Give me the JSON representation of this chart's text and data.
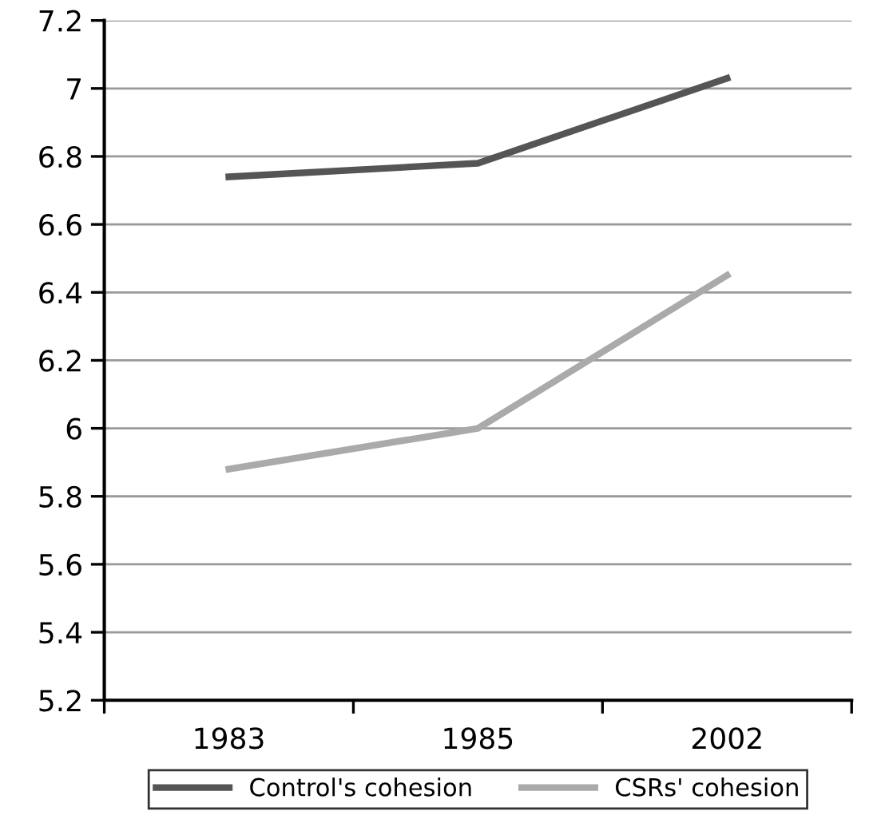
{
  "chart_data": {
    "type": "line",
    "categories": [
      "1983",
      "1985",
      "2002"
    ],
    "series": [
      {
        "name": "Control's cohesion",
        "color": "#555555",
        "values": [
          6.74,
          6.78,
          7.03
        ]
      },
      {
        "name": "CSRs' cohesion",
        "color": "#aaaaaa",
        "values": [
          5.88,
          6.0,
          6.45
        ]
      }
    ],
    "ylim": [
      5.2,
      7.2
    ],
    "yticks": [
      5.2,
      5.4,
      5.6,
      5.8,
      6,
      6.2,
      6.4,
      6.6,
      6.8,
      7,
      7.2
    ],
    "grid": "y",
    "legend": "bottom",
    "marker": "none",
    "line_style": "solid"
  }
}
